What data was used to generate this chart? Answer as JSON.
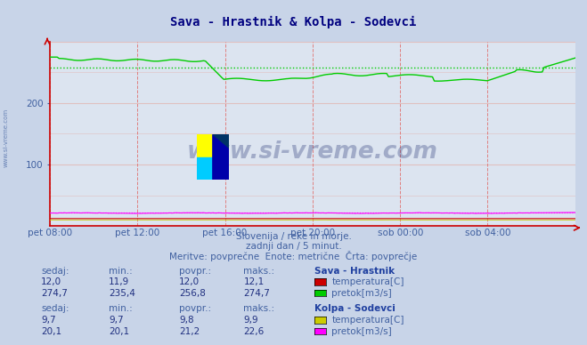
{
  "title": "Sava - Hrastnik & Kolpa - Sodevci",
  "title_color": "#000080",
  "bg_color": "#c8d4e8",
  "plot_bg_color": "#dce4f0",
  "grid_color_v": "#e08080",
  "grid_color_h": "#e0c0c0",
  "axis_color": "#cc0000",
  "xlabel_color": "#4060a0",
  "watermark_text": "www.si-vreme.com",
  "watermark_color": "#1a2a6c",
  "watermark_alpha": 0.3,
  "subtitle1": "Slovenija / reke in morje.",
  "subtitle2": "zadnji dan / 5 minut.",
  "subtitle3": "Meritve: povprečne  Enote: metrične  Črta: povprečje",
  "subtitle_color": "#4060a0",
  "xtick_labels": [
    "pet 08:00",
    "pet 12:00",
    "pet 16:00",
    "pet 20:00",
    "sob 00:00",
    "sob 04:00"
  ],
  "xtick_positions": [
    0.0,
    0.1667,
    0.3333,
    0.5,
    0.6667,
    0.8333
  ],
  "ylim": [
    0,
    300
  ],
  "yticks": [
    100,
    200
  ],
  "n_points": 288,
  "sava_pretok_color": "#00cc00",
  "sava_temp_color": "#cc0000",
  "kolpa_pretok_color": "#ff00ff",
  "kolpa_temp_color": "#cccc00",
  "sava_pretok_avg": 256.8,
  "kolpa_pretok_avg": 21.2,
  "sava_temp_avg": 12.0,
  "kolpa_temp_avg": 9.8,
  "table_header_color": "#2040a0",
  "table_value_color": "#203080",
  "table_label_color": "#4060a0",
  "left_label_color": "#4060a0"
}
